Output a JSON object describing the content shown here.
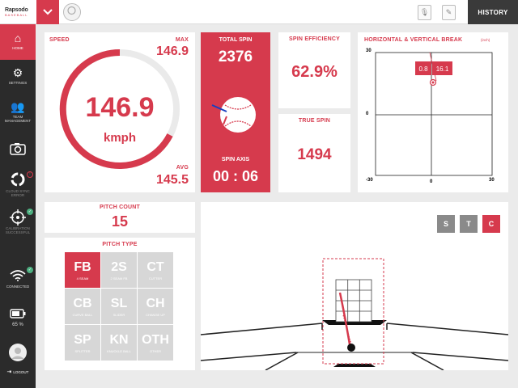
{
  "app": {
    "logo_main": "Rapsodo",
    "logo_sub": "BASEBALL",
    "history_label": "HISTORY"
  },
  "sidebar": {
    "items": [
      {
        "label": "HOME",
        "icon": "home-icon"
      },
      {
        "label": "SETTINGS",
        "icon": "gear-icon"
      },
      {
        "label": "TEAM MANAGEMENT",
        "icon": "team-icon"
      },
      {
        "label": "",
        "icon": "camera-icon"
      },
      {
        "label": "CLOUD SYNC ERROR",
        "icon": "cloud-sync-icon",
        "badge": "!"
      },
      {
        "label": "CALIBRATION SUCCESSFUL",
        "icon": "calibration-icon",
        "badge": "✓"
      },
      {
        "label": "CONNECTED",
        "icon": "wifi-icon",
        "badge": "✓"
      },
      {
        "label": "65 %",
        "icon": "battery-icon"
      },
      {
        "label": "",
        "icon": "avatar-icon"
      },
      {
        "label": "LOGOUT",
        "icon": "logout-icon"
      }
    ]
  },
  "speed": {
    "label": "SPEED",
    "max_label": "MAX",
    "max_value": "146.9",
    "value": "146.9",
    "unit": "kmph",
    "avg_label": "AVG",
    "avg_value": "145.5"
  },
  "spin": {
    "total_label": "TOTAL SPIN",
    "total_value": "2376",
    "axis_label": "SPIN AXIS",
    "axis_value": "00 : 06"
  },
  "efficiency": {
    "label": "SPIN EFFICIENCY",
    "value": "62.9%"
  },
  "true_spin": {
    "label": "TRUE SPIN",
    "value": "1494"
  },
  "break": {
    "label": "HORIZONTAL & VERTICAL BREAK",
    "unit": "(inch)",
    "y_top": "30",
    "y_mid": "0",
    "x_left": "-30",
    "x_mid": "0",
    "x_right": "30",
    "h_value": "0.8",
    "v_value": "16.1"
  },
  "pitch_count": {
    "label": "PITCH COUNT",
    "value": "15"
  },
  "pitch_type": {
    "label": "PITCH TYPE",
    "types": [
      {
        "abbr": "FB",
        "name": "4 SEAM",
        "selected": true
      },
      {
        "abbr": "2S",
        "name": "2 SEAM FB"
      },
      {
        "abbr": "CT",
        "name": "CUTTER"
      },
      {
        "abbr": "CB",
        "name": "CURVE BALL"
      },
      {
        "abbr": "SL",
        "name": "SLIDER"
      },
      {
        "abbr": "CH",
        "name": "CHANGE UP"
      },
      {
        "abbr": "SP",
        "name": "SPLITTER"
      },
      {
        "abbr": "KN",
        "name": "KNUCKLE BALL"
      },
      {
        "abbr": "OTH",
        "name": "OTHER"
      }
    ]
  },
  "view_buttons": {
    "s": "S",
    "t": "T",
    "c": "C"
  },
  "colors": {
    "accent": "#d63a4d",
    "sidebar": "#2b2b2b",
    "disabled": "#d7d7d7",
    "view_btn": "#8a8a8a",
    "ok": "#4caf80"
  }
}
